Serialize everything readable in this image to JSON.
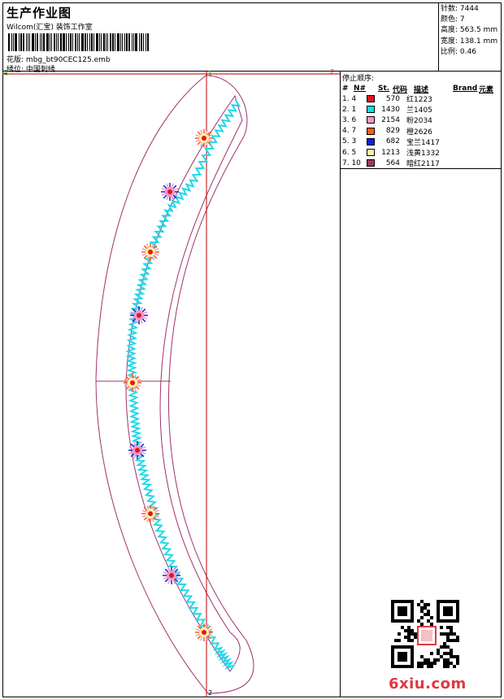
{
  "header": {
    "title": "生产作业图",
    "subtitle": "Wilcom(汇宝) 装饰工作室",
    "file_label": "花版:",
    "file_value": "mbg_bt90CEC125.emb",
    "position_label": "绣位:",
    "position_value": "中国刺绣"
  },
  "stats": {
    "stitches_label": "针数:",
    "stitches_value": "7444",
    "colors_label": "颜色:",
    "colors_value": "7",
    "height_label": "高度:",
    "height_value": "563.5 mm",
    "width_label": "宽度:",
    "width_value": "138.1 mm",
    "scale_label": "比例:",
    "scale_value": "0.46"
  },
  "sequence": {
    "title": "停止顺序:",
    "headers": {
      "num": "#",
      "n": "N#",
      "st": "St.",
      "code": "代码",
      "desc": "描述",
      "brand": "Brand",
      "element": "元素"
    },
    "rows": [
      {
        "seq": "1. 4",
        "color": "#e8141c",
        "st": "570",
        "desc": "红1223"
      },
      {
        "seq": "2. 1",
        "color": "#10e0e0",
        "st": "1430",
        "desc": "兰1405"
      },
      {
        "seq": "3. 6",
        "color": "#f098c8",
        "st": "2154",
        "desc": "粉2034"
      },
      {
        "seq": "4. 7",
        "color": "#f86010",
        "st": "829",
        "desc": "橙2626"
      },
      {
        "seq": "5. 3",
        "color": "#1020e0",
        "st": "682",
        "desc": "宝兰1417"
      },
      {
        "seq": "6. 5",
        "color": "#fff0a8",
        "st": "1213",
        "desc": "浅黄1332"
      },
      {
        "seq": "7. 10",
        "color": "#a03850",
        "st": "564",
        "desc": "暗红2117"
      }
    ]
  },
  "markers": {
    "top_left": "1",
    "top_right": "2",
    "top_mid": "1",
    "bottom_mid": "2"
  },
  "watermark": "6xiu.com",
  "colors": {
    "outline": "#a0306a",
    "axis": "#c00000",
    "guide": "#00a000",
    "zigzag": "#20d8e8"
  }
}
